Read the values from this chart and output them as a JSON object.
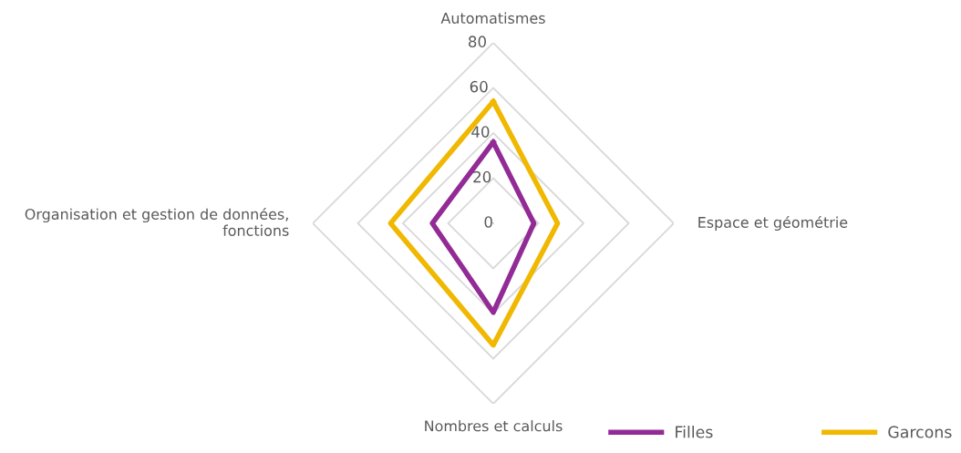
{
  "chart_data": {
    "type": "radar",
    "categories": [
      "Automatismes",
      "Espace et géométrie",
      "Nombres et calculs",
      "Organisation et gestion de données,\nfonctions"
    ],
    "series": [
      {
        "name": "Filles",
        "color": "#922b96",
        "values": [
          36,
          18,
          39.5,
          27
        ]
      },
      {
        "name": "Garcons",
        "color": "#f0b800",
        "values": [
          54,
          28.5,
          54,
          45.5
        ]
      }
    ],
    "ylim": [
      0,
      80
    ],
    "yticks": [
      0,
      20,
      40,
      60,
      80
    ],
    "grid": true,
    "legend": "bottom right"
  }
}
